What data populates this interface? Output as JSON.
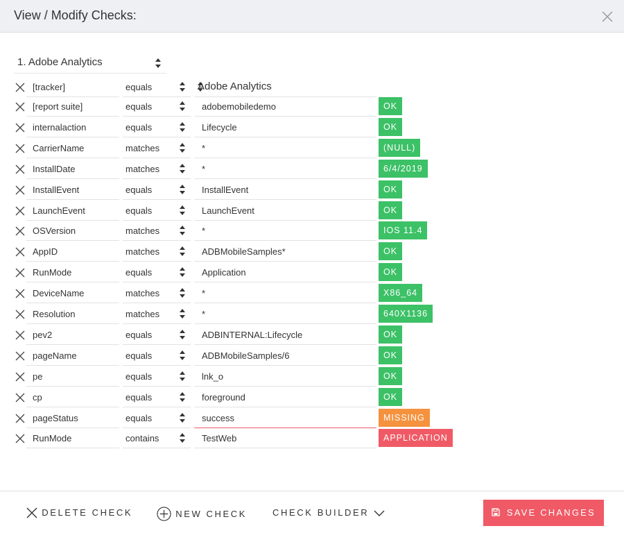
{
  "header": {
    "title": "View / Modify Checks:"
  },
  "datasource": {
    "selected": "1. Adobe Analytics"
  },
  "checks": [
    {
      "field": "[tracker]",
      "operator": "equals",
      "value": "Adobe Analytics",
      "value_is_dropdown": true,
      "result": "",
      "status": "none"
    },
    {
      "field": "[report suite]",
      "operator": "equals",
      "value": "adobemobiledemo",
      "result": "OK",
      "status": "ok"
    },
    {
      "field": "internalaction",
      "operator": "equals",
      "value": "Lifecycle",
      "result": "OK",
      "status": "ok"
    },
    {
      "field": "CarrierName",
      "operator": "matches",
      "value": "*",
      "result": "(NULL)",
      "status": "ok"
    },
    {
      "field": "InstallDate",
      "operator": "matches",
      "value": "*",
      "result": "6/4/2019",
      "status": "ok"
    },
    {
      "field": "InstallEvent",
      "operator": "equals",
      "value": "InstallEvent",
      "result": "OK",
      "status": "ok"
    },
    {
      "field": "LaunchEvent",
      "operator": "equals",
      "value": "LaunchEvent",
      "result": "OK",
      "status": "ok"
    },
    {
      "field": "OSVersion",
      "operator": "matches",
      "value": "*",
      "result": "IOS 11.4",
      "status": "ok"
    },
    {
      "field": "AppID",
      "operator": "matches",
      "value": "ADBMobileSamples*",
      "result": "OK",
      "status": "ok"
    },
    {
      "field": "RunMode",
      "operator": "equals",
      "value": "Application",
      "result": "OK",
      "status": "ok"
    },
    {
      "field": "DeviceName",
      "operator": "matches",
      "value": "*",
      "result": "X86_64",
      "status": "ok"
    },
    {
      "field": "Resolution",
      "operator": "matches",
      "value": "*",
      "result": "640X1136",
      "status": "ok"
    },
    {
      "field": "pev2",
      "operator": "equals",
      "value": "ADBINTERNAL:Lifecycle",
      "result": "OK",
      "status": "ok"
    },
    {
      "field": "pageName",
      "operator": "equals",
      "value": "ADBMobileSamples/6",
      "result": "OK",
      "status": "ok"
    },
    {
      "field": "pe",
      "operator": "equals",
      "value": "lnk_o",
      "result": "OK",
      "status": "ok"
    },
    {
      "field": "cp",
      "operator": "equals",
      "value": "foreground",
      "result": "OK",
      "status": "ok"
    },
    {
      "field": "pageStatus",
      "operator": "equals",
      "value": "success",
      "result": "MISSING",
      "status": "missing"
    },
    {
      "field": "RunMode",
      "operator": "contains",
      "value": "TestWeb",
      "result": "APPLICATION",
      "status": "fail"
    }
  ],
  "footer": {
    "delete_label": "DELETE CHECK",
    "new_label": "NEW CHECK",
    "builder_label": "CHECK BUILDER",
    "save_label": "SAVE CHANGES"
  },
  "colors": {
    "ok": "#3cc167",
    "missing": "#f5923e",
    "fail": "#f05a66",
    "accent": "#f05a66"
  },
  "icons": {
    "close": "close-icon",
    "delete_row": "x-icon",
    "sort": "sort-caret-icon",
    "new": "plus-circle-icon",
    "builder": "chevron-down-icon",
    "save": "floppy-disk-icon"
  }
}
